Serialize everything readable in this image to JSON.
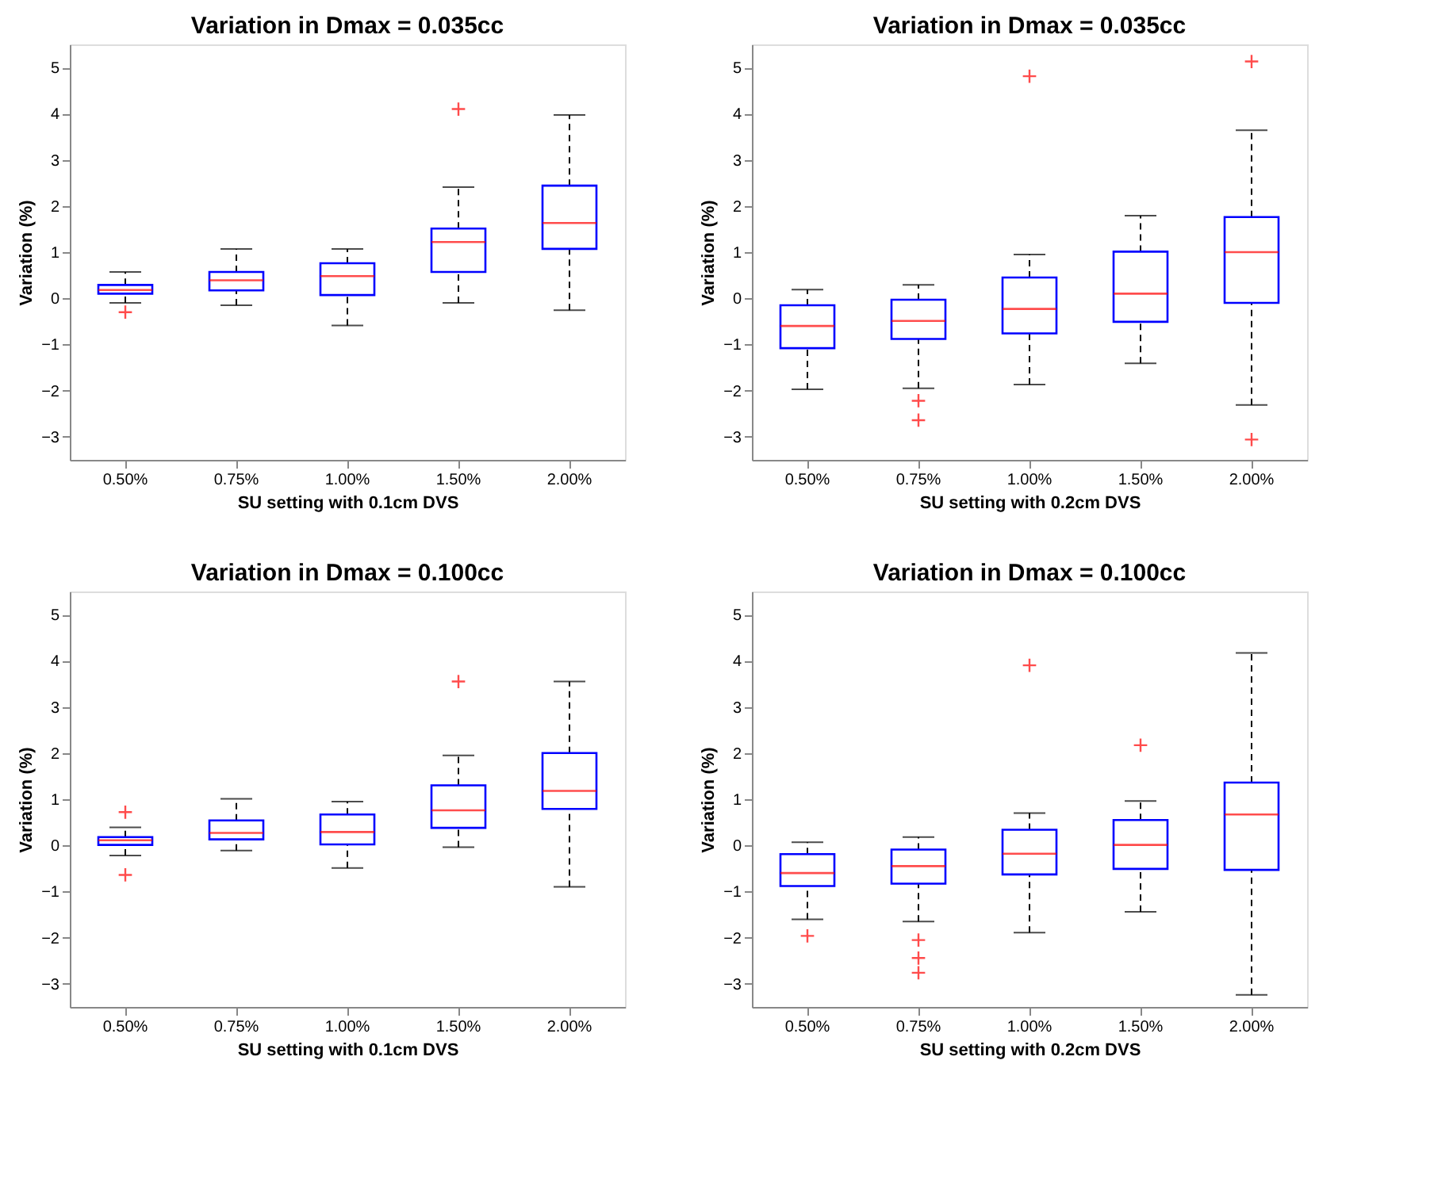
{
  "chart_data": [
    {
      "type": "box",
      "title": "Variation in Dmax = 0.035cc",
      "xlabel": "SU setting with 0.1cm DVS",
      "ylabel": "Variation (%)",
      "categories": [
        "0.50%",
        "0.75%",
        "1.00%",
        "1.50%",
        "2.00%"
      ],
      "ylim": [
        -3.5,
        5.5
      ],
      "yticks": [
        -3,
        -2,
        -1,
        0,
        1,
        2,
        3,
        4,
        5
      ],
      "grid": false,
      "series": [
        {
          "boxes": [
            {
              "low": -0.1,
              "q1": 0.1,
              "median": 0.18,
              "q3": 0.29,
              "high": 0.57,
              "outliers": [
                -0.3
              ]
            },
            {
              "low": -0.15,
              "q1": 0.17,
              "median": 0.39,
              "q3": 0.57,
              "high": 1.07
            },
            {
              "low": -0.59,
              "q1": 0.07,
              "median": 0.48,
              "q3": 0.76,
              "high": 1.07
            },
            {
              "low": -0.1,
              "q1": 0.57,
              "median": 1.22,
              "q3": 1.51,
              "high": 2.41,
              "outliers": [
                4.1
              ]
            },
            {
              "low": -0.26,
              "q1": 1.07,
              "median": 1.63,
              "q3": 2.44,
              "high": 3.97
            }
          ]
        }
      ]
    },
    {
      "type": "box",
      "title": "Variation in Dmax = 0.035cc",
      "xlabel": "SU setting with 0.2cm DVS",
      "ylabel": "Variation (%)",
      "categories": [
        "0.50%",
        "0.75%",
        "1.00%",
        "1.50%",
        "2.00%"
      ],
      "ylim": [
        -3.5,
        5.5
      ],
      "yticks": [
        -3,
        -2,
        -1,
        0,
        1,
        2,
        3,
        4,
        5
      ],
      "grid": false,
      "series": [
        {
          "boxes": [
            {
              "low": -1.97,
              "q1": -1.08,
              "median": -0.6,
              "q3": -0.15,
              "high": 0.19
            },
            {
              "low": -1.95,
              "q1": -0.88,
              "median": -0.49,
              "q3": -0.03,
              "high": 0.29,
              "outliers": [
                -2.22,
                -2.64
              ]
            },
            {
              "low": -1.87,
              "q1": -0.76,
              "median": -0.23,
              "q3": 0.45,
              "high": 0.95,
              "outliers": [
                4.81
              ]
            },
            {
              "low": -1.41,
              "q1": -0.51,
              "median": 0.1,
              "q3": 1.01,
              "high": 1.79
            },
            {
              "low": -2.31,
              "q1": -0.1,
              "median": 1.0,
              "q3": 1.76,
              "high": 3.64,
              "outliers": [
                5.13,
                -3.06
              ]
            }
          ]
        }
      ]
    },
    {
      "type": "box",
      "title": "Variation in Dmax = 0.100cc",
      "xlabel": "SU setting with 0.1cm DVS",
      "ylabel": "Variation (%)",
      "categories": [
        "0.50%",
        "0.75%",
        "1.00%",
        "1.50%",
        "2.00%"
      ],
      "ylim": [
        -3.5,
        5.5
      ],
      "yticks": [
        -3,
        -2,
        -1,
        0,
        1,
        2,
        3,
        4,
        5
      ],
      "grid": false,
      "series": [
        {
          "boxes": [
            {
              "low": -0.22,
              "q1": 0.01,
              "median": 0.11,
              "q3": 0.18,
              "high": 0.39,
              "outliers": [
                0.72,
                -0.64
              ]
            },
            {
              "low": -0.11,
              "q1": 0.13,
              "median": 0.27,
              "q3": 0.54,
              "high": 1.01
            },
            {
              "low": -0.49,
              "q1": 0.02,
              "median": 0.29,
              "q3": 0.67,
              "high": 0.95
            },
            {
              "low": -0.04,
              "q1": 0.38,
              "median": 0.76,
              "q3": 1.3,
              "high": 1.95,
              "outliers": [
                3.55
              ]
            },
            {
              "low": -0.9,
              "q1": 0.79,
              "median": 1.18,
              "q3": 2.0,
              "high": 3.55
            }
          ]
        }
      ]
    },
    {
      "type": "box",
      "title": "Variation in Dmax = 0.100cc",
      "xlabel": "SU setting with 0.2cm DVS",
      "ylabel": "Variation (%)",
      "categories": [
        "0.50%",
        "0.75%",
        "1.00%",
        "1.50%",
        "2.00%"
      ],
      "ylim": [
        -3.5,
        5.5
      ],
      "yticks": [
        -3,
        -2,
        -1,
        0,
        1,
        2,
        3,
        4,
        5
      ],
      "grid": false,
      "series": [
        {
          "boxes": [
            {
              "low": -1.6,
              "q1": -0.88,
              "median": -0.6,
              "q3": -0.19,
              "high": 0.07,
              "outliers": [
                -1.96
              ]
            },
            {
              "low": -1.65,
              "q1": -0.83,
              "median": -0.45,
              "q3": -0.09,
              "high": 0.18,
              "outliers": [
                -2.05,
                -2.44,
                -2.76
              ]
            },
            {
              "low": -1.89,
              "q1": -0.63,
              "median": -0.18,
              "q3": 0.34,
              "high": 0.7,
              "outliers": [
                3.9
              ]
            },
            {
              "low": -1.44,
              "q1": -0.51,
              "median": 0.01,
              "q3": 0.55,
              "high": 0.96,
              "outliers": [
                2.17
              ]
            },
            {
              "low": -3.24,
              "q1": -0.53,
              "median": 0.67,
              "q3": 1.36,
              "high": 4.17
            }
          ]
        }
      ]
    }
  ]
}
